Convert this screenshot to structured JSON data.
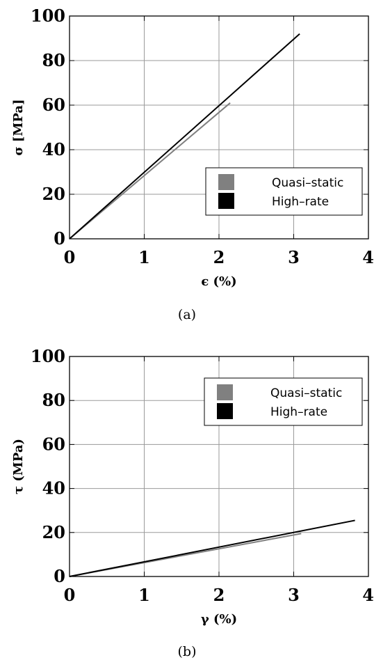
{
  "chart_data": [
    {
      "type": "line",
      "caption": "(a)",
      "xlabel": "ϵ (%)",
      "ylabel": "σ [MPa]",
      "xlim": [
        0,
        4
      ],
      "ylim": [
        0,
        100
      ],
      "xticks": [
        "0",
        "1",
        "2",
        "3",
        "4"
      ],
      "yticks": [
        "0",
        "20",
        "40",
        "60",
        "80",
        "100"
      ],
      "grid": true,
      "legend_position": "lower-right",
      "series": [
        {
          "name": "Quasi–static",
          "color": "#808080",
          "x": [
            0,
            2.15
          ],
          "y": [
            0,
            61
          ]
        },
        {
          "name": "High–rate",
          "color": "#000000",
          "x": [
            0,
            3.08
          ],
          "y": [
            0,
            92
          ]
        }
      ]
    },
    {
      "type": "line",
      "caption": "(b)",
      "xlabel": "γ (%)",
      "ylabel": "τ (MPa)",
      "xlim": [
        0,
        4
      ],
      "ylim": [
        0,
        100
      ],
      "xticks": [
        "0",
        "1",
        "2",
        "3",
        "4"
      ],
      "yticks": [
        "0",
        "20",
        "40",
        "60",
        "80",
        "100"
      ],
      "grid": true,
      "legend_position": "upper-right",
      "series": [
        {
          "name": "Quasi–static",
          "color": "#808080",
          "x": [
            0,
            3.1
          ],
          "y": [
            0,
            19.5
          ]
        },
        {
          "name": "High–rate",
          "color": "#000000",
          "x": [
            0,
            3.82
          ],
          "y": [
            0,
            25.5
          ]
        }
      ]
    }
  ]
}
